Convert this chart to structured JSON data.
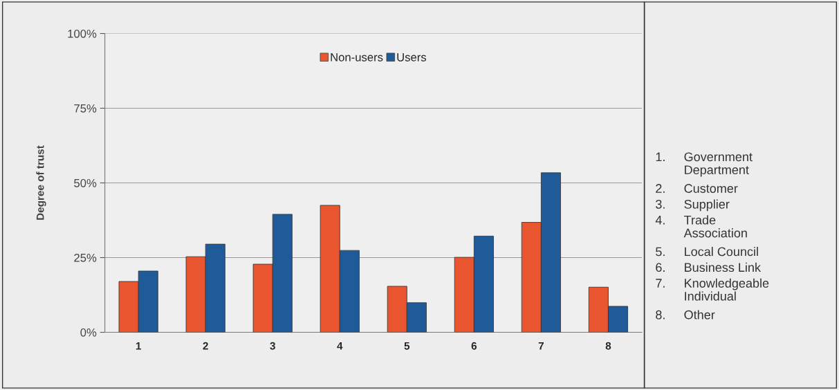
{
  "chart_data": {
    "type": "bar",
    "ylabel": "Degree of trust",
    "categories": [
      "1",
      "2",
      "3",
      "4",
      "5",
      "6",
      "7",
      "8"
    ],
    "series": [
      {
        "name": "Non-users",
        "color": "#e8552f",
        "values": [
          17.0,
          25.3,
          22.8,
          42.5,
          15.4,
          25.1,
          36.8,
          15.1
        ]
      },
      {
        "name": "Users",
        "color": "#1f5b99",
        "values": [
          20.5,
          29.5,
          39.5,
          27.4,
          9.9,
          32.2,
          53.4,
          8.7
        ]
      }
    ],
    "ylim": [
      0,
      100
    ],
    "yticks": [
      {
        "value": 0,
        "label": "0%"
      },
      {
        "value": 25,
        "label": "25%"
      },
      {
        "value": 50,
        "label": "50%"
      },
      {
        "value": 75,
        "label": "75%"
      },
      {
        "value": 100,
        "label": "100%"
      }
    ],
    "grid": "y",
    "legend": "top",
    "annotations": [
      "1. Government\nDepartment",
      "2. Customer",
      "3. Supplier",
      "4. Trade\nAssociation",
      "5. Local Council",
      "6. Business Link",
      "7. Knowledgeable\nIndividual",
      "8. Other"
    ]
  }
}
